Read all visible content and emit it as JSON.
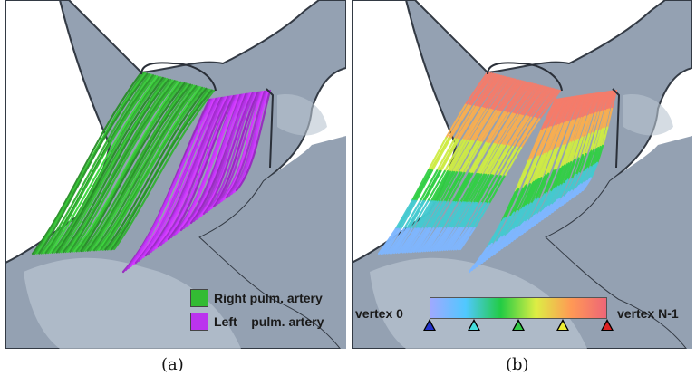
{
  "panels": [
    {
      "id": "a",
      "caption": "(a)",
      "legend": [
        {
          "label": "Right pulm. artery",
          "color": "#33bb33"
        },
        {
          "label": "Left    pulm. artery",
          "color": "#bb33ee"
        }
      ],
      "bundle_colors": {
        "right": "#33bb33",
        "left": "#bb33ee"
      }
    },
    {
      "id": "b",
      "caption": "(b)",
      "colorbar": {
        "start_label": "vertex 0",
        "end_label": "vertex N-1",
        "gradient": [
          "#9fa9ff",
          "#50c8ff",
          "#22cc44",
          "#ddee44",
          "#ff9955",
          "#ee6677"
        ],
        "markers": [
          "#2233cc",
          "#44dddd",
          "#33cc44",
          "#eeee33",
          "#dd2222"
        ]
      }
    }
  ],
  "colors": {
    "anatomy_fill": "#94a1b2",
    "anatomy_light": "#b9c4d1",
    "anatomy_outline": "#333a44"
  }
}
